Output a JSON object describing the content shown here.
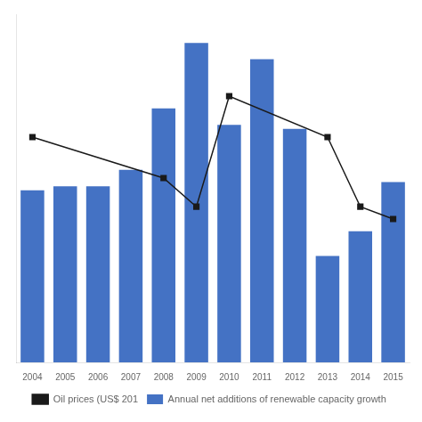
{
  "chart_data": {
    "type": "bar",
    "categories": [
      2004,
      2005,
      2006,
      2007,
      2008,
      2009,
      2010,
      2011,
      2012,
      2013,
      2014,
      2015
    ],
    "series": [
      {
        "name": "Annual net additions of renewable capacity growth",
        "type": "bar",
        "color": "#4472C4",
        "values": [
          42,
          43,
          43,
          47,
          62,
          78,
          58,
          74,
          57,
          26,
          32,
          44
        ]
      },
      {
        "name": "Oil prices (US$ 201",
        "type": "line",
        "color": "#1a1a1a",
        "marker": "square",
        "x": [
          2004,
          2008,
          2009,
          2010,
          2013,
          2014,
          2015
        ],
        "values": [
          55,
          45,
          38,
          65,
          55,
          38,
          35
        ]
      }
    ],
    "ylim": [
      0,
      85
    ],
    "grid": false,
    "legend": "bottom",
    "tick_labels": "x"
  }
}
